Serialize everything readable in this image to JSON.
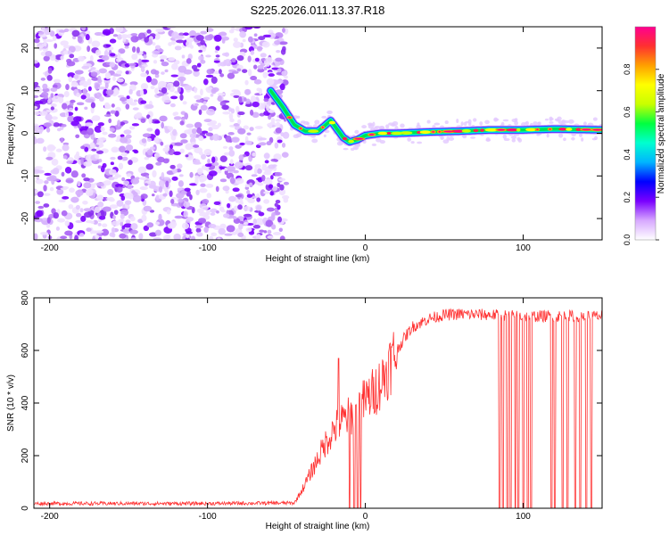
{
  "figure": {
    "title": "S225.2026.011.13.37.R18"
  },
  "chart_data": [
    {
      "type": "heatmap",
      "title": "S225.2026.011.13.37.R18",
      "xlabel": "Height of straight line (km)",
      "ylabel": "Frequency (Hz)",
      "xlim": [
        -210,
        150
      ],
      "ylim": [
        -25,
        25
      ],
      "xticks": [
        -200,
        -100,
        0,
        100
      ],
      "yticks": [
        -20,
        -10,
        0,
        10,
        20
      ],
      "noise_region_x": [
        -210,
        -50
      ],
      "ridge": {
        "x": [
          -60,
          -52,
          -45,
          -38,
          -30,
          -25,
          -22,
          -18,
          -14,
          -10,
          -5,
          0,
          10,
          20,
          40,
          60,
          80,
          100,
          120,
          150
        ],
        "freq_hz": [
          10,
          6,
          2,
          0.5,
          0.5,
          2,
          3,
          1,
          -1,
          -2,
          -1.5,
          -0.5,
          0,
          0,
          0.3,
          0.5,
          0.8,
          0.8,
          1,
          0.8
        ]
      },
      "colorbar": {
        "label": "Normalized spectral amplitude",
        "range": [
          0,
          1
        ],
        "ticks": [
          "0.0",
          "0.2",
          "0.4",
          "0.6",
          "0.8"
        ],
        "colors": [
          "#ffffff",
          "#d7a8ff",
          "#7a00ff",
          "#0000ff",
          "#00b4ff",
          "#00ffd0",
          "#00ff40",
          "#c8ff00",
          "#ffff00",
          "#ffa000",
          "#ff3030",
          "#ff0090"
        ]
      }
    },
    {
      "type": "line",
      "xlabel": "Height of straight line (km)",
      "ylabel": "SNR (10 * v/v)",
      "xlim": [
        -210,
        150
      ],
      "ylim": [
        0,
        800
      ],
      "xticks": [
        -200,
        -100,
        0,
        100
      ],
      "yticks": [
        0,
        200,
        400,
        600,
        800
      ],
      "color": "#ff3030",
      "series": [
        {
          "name": "SNR",
          "x": [
            -210,
            -100,
            -45,
            -40,
            -35,
            -30,
            -25,
            -20,
            -15,
            -10,
            -5,
            0,
            5,
            10,
            15,
            20,
            25,
            30,
            40,
            50,
            60,
            80,
            100,
            120,
            150
          ],
          "values": [
            18,
            18,
            20,
            70,
            130,
            190,
            250,
            300,
            330,
            350,
            380,
            410,
            440,
            480,
            540,
            600,
            650,
            690,
            720,
            735,
            738,
            735,
            730,
            730,
            730
          ]
        }
      ],
      "dropouts_x": [
        -10,
        -7,
        -5,
        -3,
        85,
        87,
        90,
        92,
        95,
        97,
        100,
        103,
        105,
        118,
        120,
        125,
        128,
        133,
        136,
        140,
        143
      ],
      "spikes": [
        {
          "x": -17,
          "value": 570
        }
      ]
    }
  ]
}
